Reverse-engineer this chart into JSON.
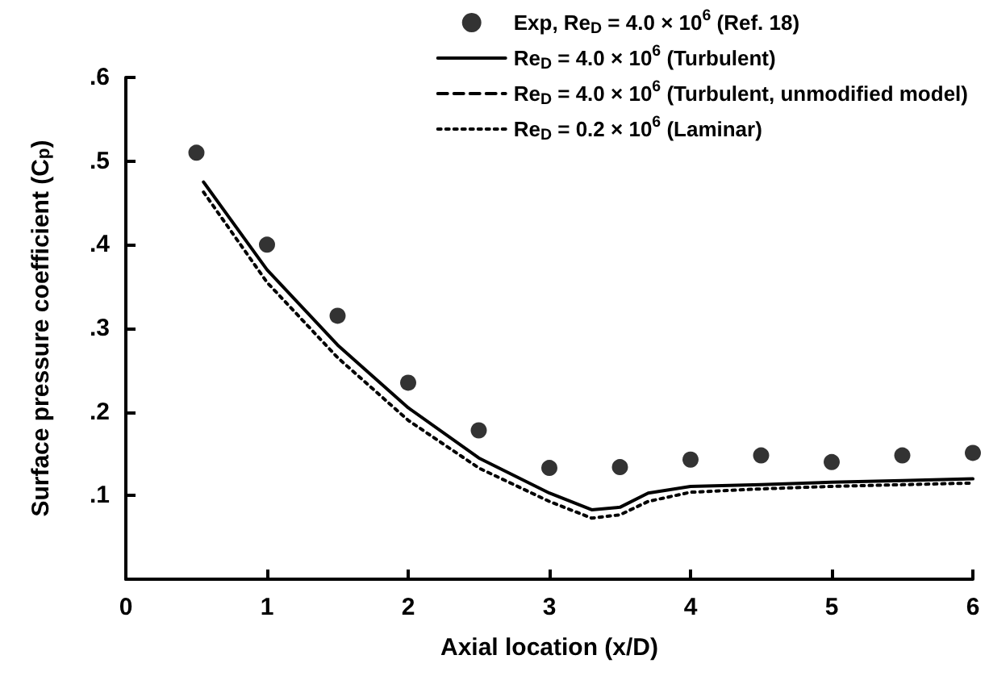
{
  "chart_data": {
    "type": "line",
    "xlabel": "Axial location (x/D)",
    "ylabel": "Surface pressure coefficient (C$_{p}$)",
    "xlim": [
      0,
      6
    ],
    "xticks": [
      0,
      1,
      2,
      3,
      4,
      5,
      6
    ],
    "ylim": [
      0,
      0.6
    ],
    "yticks": [
      {
        "value": 0.1,
        "label": ".1"
      },
      {
        "value": 0.2,
        "label": ".2"
      },
      {
        "value": 0.3,
        "label": ".3"
      },
      {
        "value": 0.4,
        "label": ".4"
      },
      {
        "value": 0.5,
        "label": ".5"
      },
      {
        "value": 0.6,
        "label": ".6"
      }
    ],
    "grid": false,
    "legend": "top right",
    "series": [
      {
        "name": "Exp, Re$_{D}$ = 4.0 × 10$^{6}$ (Ref. 18)",
        "type": "scatter",
        "marker": "circle",
        "color": "#000000",
        "x": [
          0.5,
          1,
          1.5,
          2,
          2.5,
          3,
          3.5,
          4,
          4.5,
          5,
          5.5,
          6
        ],
        "values": [
          0.51,
          0.4,
          0.315,
          0.235,
          0.178,
          0.133,
          0.134,
          0.143,
          0.148,
          0.14,
          0.148,
          0.151
        ]
      },
      {
        "name": "Re$_{D}$ = 4.0 × 10$^{6}$ (Turbulent)",
        "marker": "none",
        "line_style": "solid",
        "color": "#000000",
        "x": [
          0.55,
          1,
          1.5,
          2,
          2.5,
          3,
          3.3,
          3.5,
          3.7,
          4,
          4.5,
          5,
          5.5,
          6
        ],
        "values": [
          0.475,
          0.37,
          0.28,
          0.205,
          0.145,
          0.103,
          0.083,
          0.086,
          0.103,
          0.111,
          0.113,
          0.116,
          0.118,
          0.12
        ]
      },
      {
        "name": "Re$_{D}$ = 4.0 × 10$^{6}$ (Turbulent, unmodified model)",
        "marker": "none",
        "line_style": "dashed",
        "color": "#000000"
      },
      {
        "name": "Re$_{D}$ = 0.2 × 10$^{6}$ (Laminar)",
        "marker": "none",
        "line_style": "dotted",
        "color": "#000000",
        "x": [
          0.55,
          1,
          1.5,
          2,
          2.5,
          3,
          3.3,
          3.5,
          3.7,
          4,
          4.5,
          5,
          5.5,
          6
        ],
        "values": [
          0.463,
          0.355,
          0.265,
          0.19,
          0.133,
          0.093,
          0.073,
          0.077,
          0.093,
          0.104,
          0.108,
          0.111,
          0.113,
          0.115
        ]
      }
    ]
  }
}
